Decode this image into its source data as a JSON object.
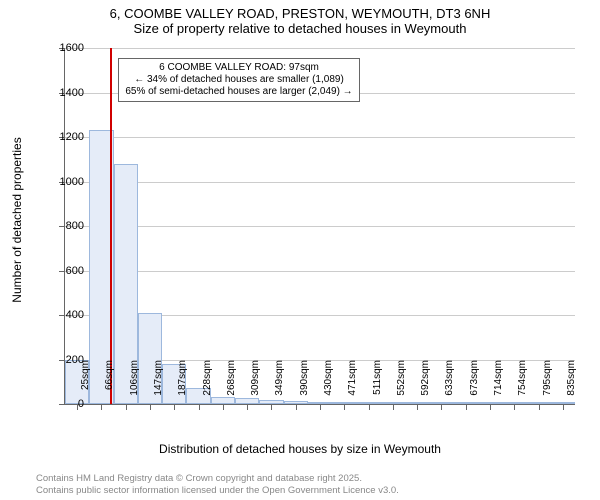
{
  "title_line1": "6, COOMBE VALLEY ROAD, PRESTON, WEYMOUTH, DT3 6NH",
  "title_line2": "Size of property relative to detached houses in Weymouth",
  "chart": {
    "type": "histogram",
    "background_color": "#ffffff",
    "bar_fill": "#e5ecf8",
    "bar_border": "#9db8dd",
    "grid_color": "#cccccc",
    "refline_color": "#d00000",
    "refline_x": 97,
    "yaxis_title": "Number of detached properties",
    "xaxis_title": "Distribution of detached houses by size in Weymouth",
    "ylim": [
      0,
      1600
    ],
    "ytick_step": 200,
    "xlabels": [
      "25sqm",
      "66sqm",
      "106sqm",
      "147sqm",
      "187sqm",
      "228sqm",
      "268sqm",
      "309sqm",
      "349sqm",
      "390sqm",
      "430sqm",
      "471sqm",
      "511sqm",
      "552sqm",
      "592sqm",
      "633sqm",
      "673sqm",
      "714sqm",
      "754sqm",
      "795sqm",
      "835sqm"
    ],
    "bars": [
      200,
      1230,
      1080,
      410,
      180,
      70,
      30,
      25,
      18,
      12,
      8,
      5,
      4,
      3,
      2,
      2,
      1,
      1,
      1,
      1,
      1
    ],
    "annotation": {
      "line1": "6 COOMBE VALLEY ROAD: 97sqm",
      "line2": "← 34% of detached houses are smaller (1,089)",
      "line3": "65% of semi-detached houses are larger (2,049) →"
    },
    "title_fontsize": 13,
    "axis_label_fontsize": 12,
    "tick_label_fontsize": 11,
    "xtick_label_fontsize": 10,
    "annotation_fontsize": 10
  },
  "attribution": {
    "line1": "Contains HM Land Registry data © Crown copyright and database right 2025.",
    "line2": "Contains public sector information licensed under the Open Government Licence v3.0."
  }
}
